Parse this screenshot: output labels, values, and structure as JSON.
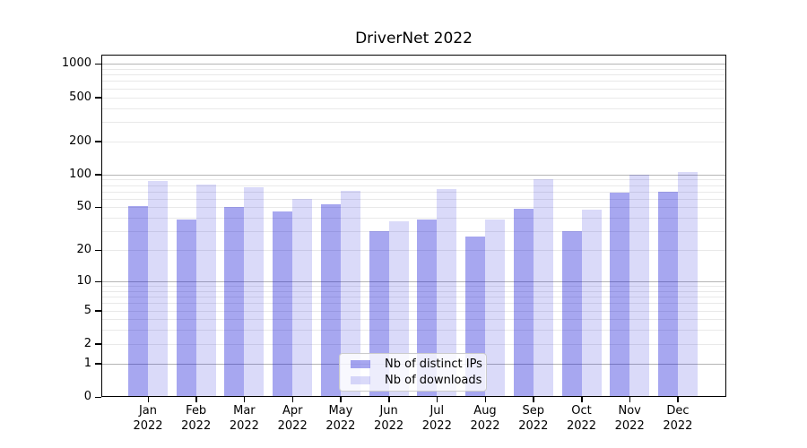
{
  "title": "DriverNet 2022",
  "chart_data": {
    "type": "bar",
    "title": "DriverNet 2022",
    "yscale": "symlog (position proportional to log10(1+value))",
    "categories": [
      "Jan",
      "Feb",
      "Mar",
      "Apr",
      "May",
      "Jun",
      "Jul",
      "Aug",
      "Sep",
      "Oct",
      "Nov",
      "Dec"
    ],
    "year_label": "2022",
    "series": [
      {
        "name": "Nb of distinct IPs",
        "color_hex_on_white": "#a7a7f0",
        "color_rgba": "rgba(4,4,212,0.35)",
        "values": [
          51,
          39,
          50,
          46,
          53,
          30,
          39,
          27,
          49,
          30,
          68,
          69
        ]
      },
      {
        "name": "Nb of downloads",
        "color_hex_on_white": "#d9d9f8",
        "color_rgba": "rgba(4,4,212,0.15)",
        "values": [
          88,
          81,
          76,
          60,
          71,
          37,
          74,
          39,
          90,
          48,
          99,
          105
        ]
      }
    ],
    "y_ticks": [
      0,
      1,
      2,
      5,
      10,
      20,
      50,
      100,
      200,
      500,
      1000
    ],
    "ylim": [
      0,
      1215
    ],
    "grid": true,
    "legend_position": "lower center",
    "legend_entries": [
      "Nb of distinct IPs",
      "Nb of downloads"
    ]
  },
  "colors": {
    "major_gridline": "#b5b5b5",
    "minor_gridline": "#e9e9e9",
    "axis": "#000000",
    "background": "#ffffff"
  }
}
